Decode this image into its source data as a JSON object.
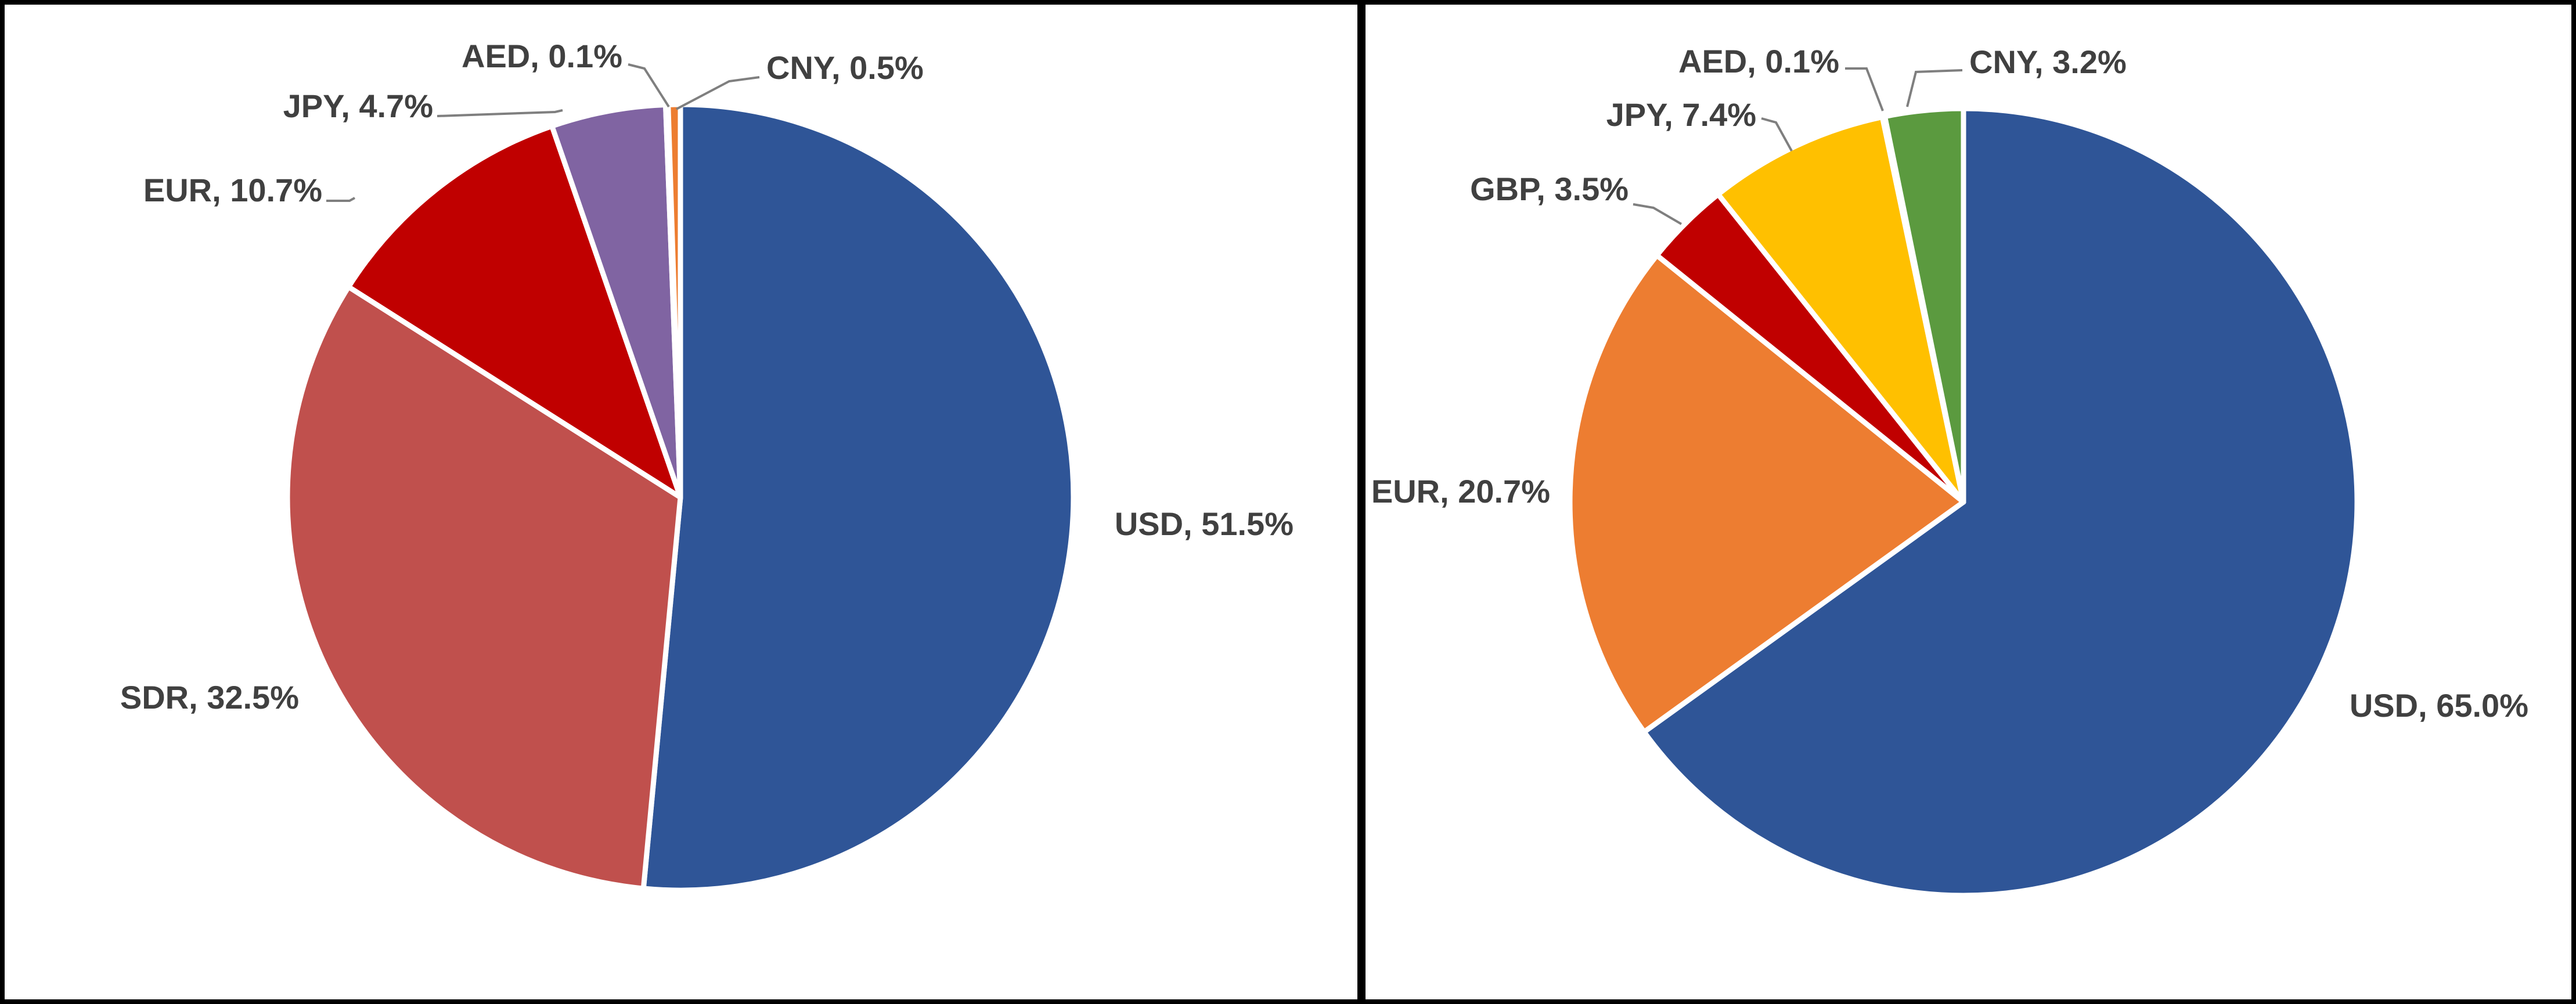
{
  "chart_data": [
    {
      "type": "pie",
      "title": "",
      "slices": [
        {
          "label": "USD",
          "value": 51.5,
          "text": "USD, 51.5%",
          "color": "#2F5597"
        },
        {
          "label": "SDR",
          "value": 32.5,
          "text": "SDR, 32.5%",
          "color": "#C0504D"
        },
        {
          "label": "EUR",
          "value": 10.7,
          "text": "EUR, 10.7%",
          "color": "#C00000"
        },
        {
          "label": "JPY",
          "value": 4.7,
          "text": "JPY, 4.7%",
          "color": "#8064A2"
        },
        {
          "label": "AED",
          "value": 0.1,
          "text": "AED, 0.1%",
          "color": "#4BACC6"
        },
        {
          "label": "CNY",
          "value": 0.5,
          "text": "CNY, 0.5%",
          "color": "#ED7D31"
        }
      ],
      "start": "12 o'clock",
      "direction": "clockwise",
      "legend": "none"
    },
    {
      "type": "pie",
      "title": "",
      "slices": [
        {
          "label": "USD",
          "value": 65.0,
          "text": "USD, 65.0%",
          "color": "#2F5597"
        },
        {
          "label": "EUR",
          "value": 20.7,
          "text": "EUR, 20.7%",
          "color": "#ED7D31"
        },
        {
          "label": "GBP",
          "value": 3.5,
          "text": "GBP, 3.5%",
          "color": "#C00000"
        },
        {
          "label": "JPY",
          "value": 7.4,
          "text": "JPY, 7.4%",
          "color": "#FFC000"
        },
        {
          "label": "AED",
          "value": 0.1,
          "text": "AED, 0.1%",
          "color": "#4472C4"
        },
        {
          "label": "CNY",
          "value": 3.2,
          "text": "CNY, 3.2%",
          "color": "#5B9A3F"
        }
      ],
      "start": "12 o'clock",
      "direction": "clockwise",
      "legend": "none"
    }
  ]
}
